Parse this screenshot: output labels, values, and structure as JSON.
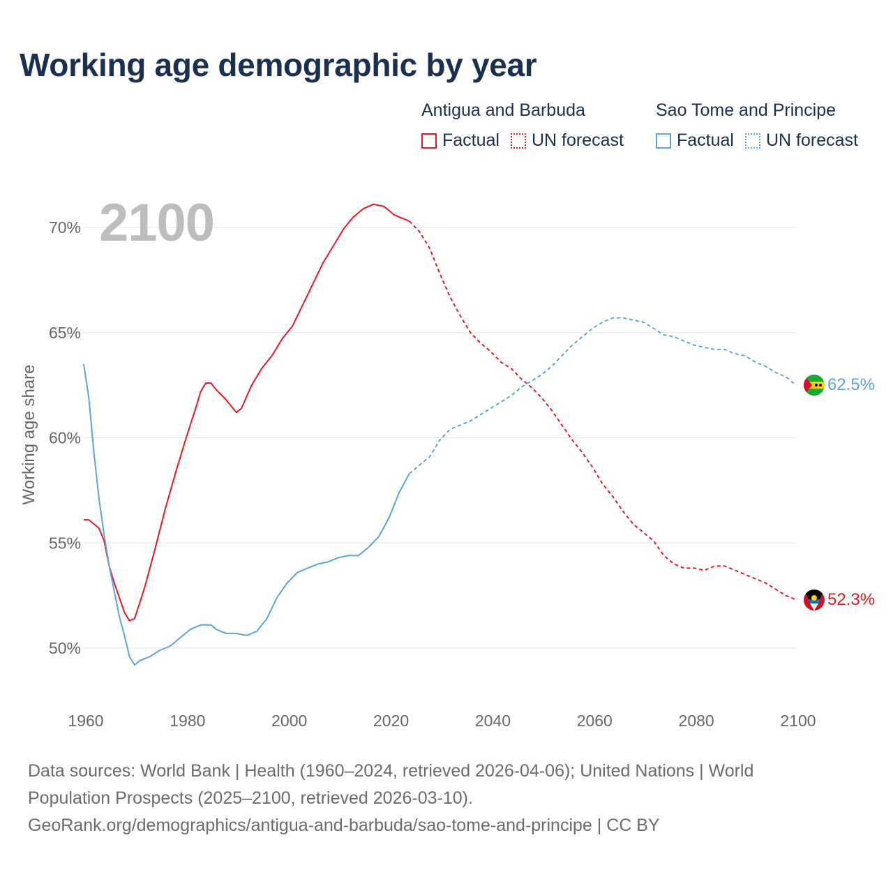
{
  "title": "Working age demographic by year",
  "year_display": "2100",
  "legend": {
    "groups": [
      {
        "name": "Antigua and Barbuda",
        "factual": "Factual",
        "forecast": "UN forecast",
        "color": "#e8191f"
      },
      {
        "name": "Sao Tome and Principe",
        "factual": "Factual",
        "forecast": "UN forecast",
        "color": "#5aa5e0"
      }
    ]
  },
  "end_labels": {
    "antigua": "52.3%",
    "sao_tome": "62.5%"
  },
  "flags": {
    "antigua": "antigua-flag-icon",
    "sao_tome": "sao-tome-flag-icon"
  },
  "footer": {
    "line1": "Data sources: World Bank | Health (1960–2024, retrieved 2026-04-06); United Nations | World",
    "line2": "Population Prospects (2025–2100, retrieved 2026-03-10).",
    "line3": "GeoRank.org/demographics/antigua-and-barbuda/sao-tome-and-principe | CC BY"
  },
  "chart_data": {
    "type": "line",
    "title": "Working age demographic by year",
    "xlabel": "",
    "ylabel": "Working age share",
    "xlim": [
      1960,
      2100
    ],
    "ylim": [
      47,
      72
    ],
    "x_ticks": [
      "1960",
      "1980",
      "2000",
      "2020",
      "2040",
      "2060",
      "2080",
      "2100"
    ],
    "y_ticks": [
      "50%",
      "55%",
      "60%",
      "65%",
      "70%"
    ],
    "y_tick_values": [
      50,
      55,
      60,
      65,
      70
    ],
    "x_tick_values": [
      1960,
      1980,
      2000,
      2020,
      2040,
      2060,
      2080,
      2100
    ],
    "grid": true,
    "series": [
      {
        "name": "Antigua and Barbuda",
        "color": "#e8191f",
        "factual": [
          [
            1960,
            56.1
          ],
          [
            1961,
            56.1
          ],
          [
            1962,
            55.9
          ],
          [
            1963,
            55.7
          ],
          [
            1964,
            55.1
          ],
          [
            1965,
            53.9
          ],
          [
            1966,
            53.1
          ],
          [
            1967,
            52.4
          ],
          [
            1968,
            51.7
          ],
          [
            1969,
            51.3
          ],
          [
            1970,
            51.4
          ],
          [
            1972,
            52.9
          ],
          [
            1974,
            54.7
          ],
          [
            1976,
            56.6
          ],
          [
            1978,
            58.3
          ],
          [
            1980,
            59.9
          ],
          [
            1982,
            61.4
          ],
          [
            1983,
            62.2
          ],
          [
            1984,
            62.6
          ],
          [
            1985,
            62.6
          ],
          [
            1986,
            62.3
          ],
          [
            1988,
            61.8
          ],
          [
            1990,
            61.2
          ],
          [
            1991,
            61.4
          ],
          [
            1993,
            62.5
          ],
          [
            1995,
            63.3
          ],
          [
            1997,
            63.9
          ],
          [
            1999,
            64.7
          ],
          [
            2001,
            65.3
          ],
          [
            2003,
            66.3
          ],
          [
            2005,
            67.3
          ],
          [
            2007,
            68.3
          ],
          [
            2009,
            69.1
          ],
          [
            2011,
            69.9
          ],
          [
            2013,
            70.5
          ],
          [
            2015,
            70.9
          ],
          [
            2017,
            71.1
          ],
          [
            2019,
            71.0
          ],
          [
            2021,
            70.6
          ],
          [
            2024,
            70.3
          ]
        ],
        "forecast": [
          [
            2024,
            70.3
          ],
          [
            2026,
            69.8
          ],
          [
            2028,
            69.0
          ],
          [
            2030,
            67.8
          ],
          [
            2032,
            66.7
          ],
          [
            2034,
            65.8
          ],
          [
            2036,
            65.0
          ],
          [
            2038,
            64.5
          ],
          [
            2040,
            64.1
          ],
          [
            2042,
            63.6
          ],
          [
            2044,
            63.3
          ],
          [
            2046,
            62.8
          ],
          [
            2048,
            62.4
          ],
          [
            2050,
            61.9
          ],
          [
            2052,
            61.3
          ],
          [
            2054,
            60.6
          ],
          [
            2056,
            59.9
          ],
          [
            2058,
            59.3
          ],
          [
            2060,
            58.6
          ],
          [
            2062,
            57.8
          ],
          [
            2064,
            57.2
          ],
          [
            2066,
            56.5
          ],
          [
            2068,
            55.9
          ],
          [
            2070,
            55.5
          ],
          [
            2072,
            55.1
          ],
          [
            2074,
            54.4
          ],
          [
            2076,
            54.0
          ],
          [
            2078,
            53.8
          ],
          [
            2080,
            53.8
          ],
          [
            2082,
            53.7
          ],
          [
            2084,
            53.9
          ],
          [
            2086,
            53.9
          ],
          [
            2088,
            53.7
          ],
          [
            2090,
            53.5
          ],
          [
            2092,
            53.3
          ],
          [
            2094,
            53.1
          ],
          [
            2096,
            52.8
          ],
          [
            2098,
            52.5
          ],
          [
            2100,
            52.3
          ]
        ]
      },
      {
        "name": "Sao Tome and Principe",
        "color": "#5aa5e0",
        "factual": [
          [
            1960,
            63.5
          ],
          [
            1961,
            61.9
          ],
          [
            1962,
            59.3
          ],
          [
            1963,
            57.1
          ],
          [
            1964,
            55.4
          ],
          [
            1965,
            53.9
          ],
          [
            1966,
            52.7
          ],
          [
            1967,
            51.5
          ],
          [
            1968,
            50.6
          ],
          [
            1969,
            49.6
          ],
          [
            1970,
            49.2
          ],
          [
            1971,
            49.4
          ],
          [
            1973,
            49.6
          ],
          [
            1975,
            49.9
          ],
          [
            1977,
            50.1
          ],
          [
            1979,
            50.5
          ],
          [
            1981,
            50.9
          ],
          [
            1983,
            51.1
          ],
          [
            1985,
            51.1
          ],
          [
            1986,
            50.9
          ],
          [
            1988,
            50.7
          ],
          [
            1990,
            50.7
          ],
          [
            1992,
            50.6
          ],
          [
            1994,
            50.8
          ],
          [
            1996,
            51.4
          ],
          [
            1998,
            52.4
          ],
          [
            2000,
            53.1
          ],
          [
            2002,
            53.6
          ],
          [
            2004,
            53.8
          ],
          [
            2006,
            54.0
          ],
          [
            2008,
            54.1
          ],
          [
            2010,
            54.3
          ],
          [
            2012,
            54.4
          ],
          [
            2014,
            54.4
          ],
          [
            2016,
            54.8
          ],
          [
            2018,
            55.3
          ],
          [
            2020,
            56.2
          ],
          [
            2022,
            57.4
          ],
          [
            2024,
            58.3
          ]
        ],
        "forecast": [
          [
            2024,
            58.3
          ],
          [
            2026,
            58.7
          ],
          [
            2028,
            59.1
          ],
          [
            2030,
            59.9
          ],
          [
            2032,
            60.4
          ],
          [
            2034,
            60.6
          ],
          [
            2036,
            60.8
          ],
          [
            2038,
            61.1
          ],
          [
            2040,
            61.4
          ],
          [
            2042,
            61.7
          ],
          [
            2044,
            62.0
          ],
          [
            2046,
            62.4
          ],
          [
            2048,
            62.7
          ],
          [
            2050,
            63.0
          ],
          [
            2052,
            63.4
          ],
          [
            2054,
            63.9
          ],
          [
            2056,
            64.4
          ],
          [
            2058,
            64.8
          ],
          [
            2060,
            65.2
          ],
          [
            2062,
            65.5
          ],
          [
            2064,
            65.7
          ],
          [
            2066,
            65.7
          ],
          [
            2068,
            65.6
          ],
          [
            2070,
            65.5
          ],
          [
            2072,
            65.2
          ],
          [
            2074,
            64.9
          ],
          [
            2076,
            64.8
          ],
          [
            2078,
            64.6
          ],
          [
            2080,
            64.4
          ],
          [
            2082,
            64.3
          ],
          [
            2084,
            64.2
          ],
          [
            2086,
            64.2
          ],
          [
            2088,
            64.0
          ],
          [
            2090,
            63.9
          ],
          [
            2092,
            63.6
          ],
          [
            2094,
            63.4
          ],
          [
            2096,
            63.1
          ],
          [
            2098,
            62.9
          ],
          [
            2100,
            62.5
          ]
        ]
      }
    ]
  }
}
